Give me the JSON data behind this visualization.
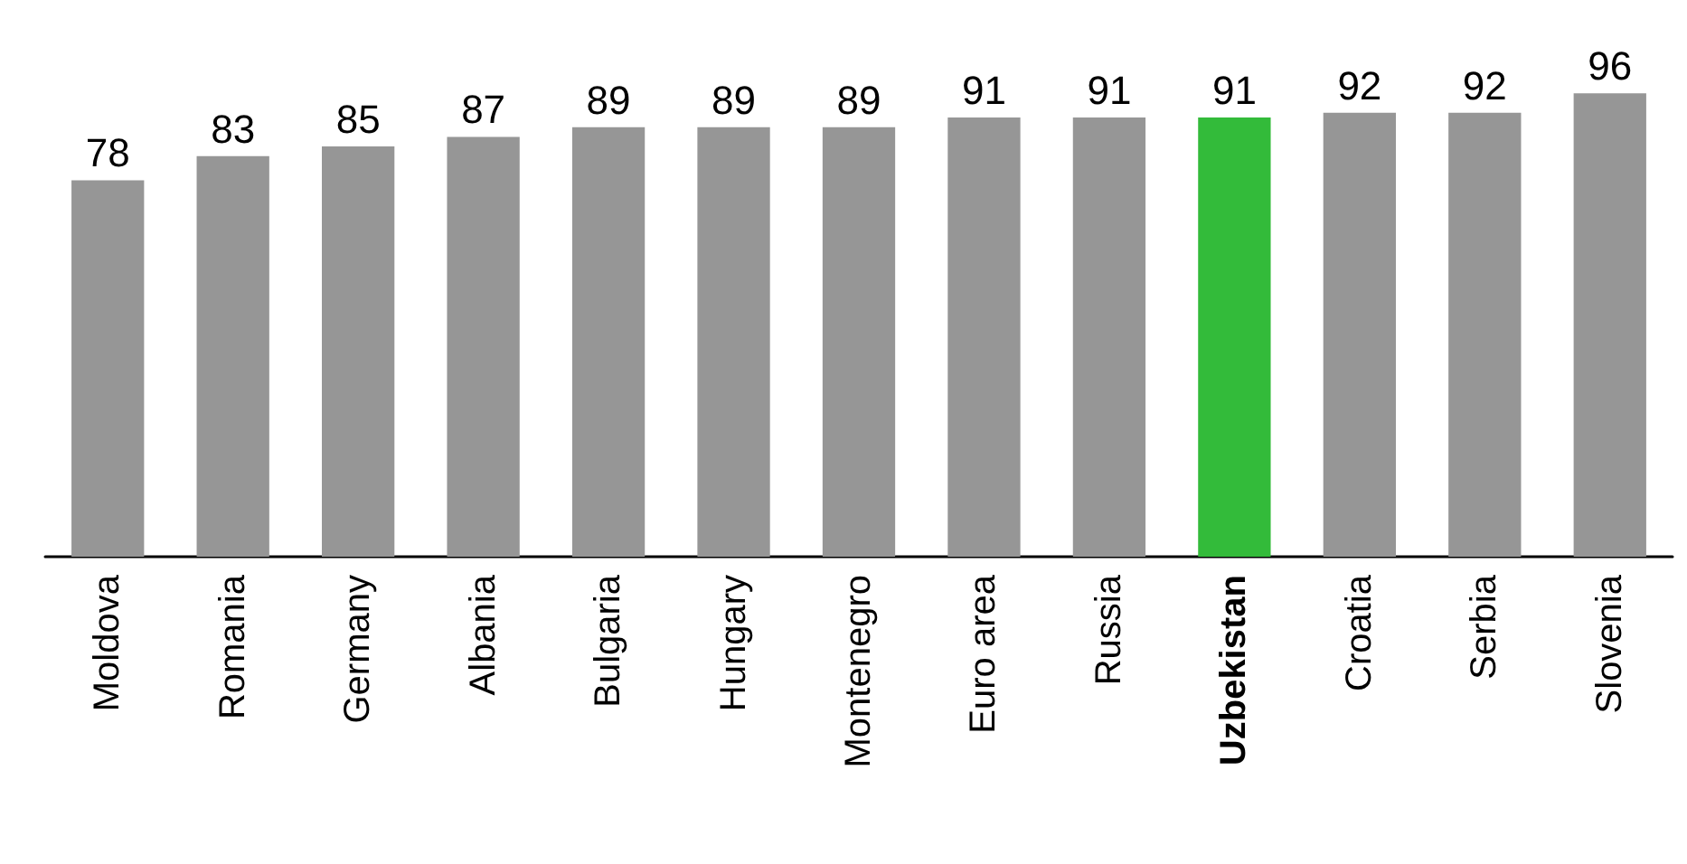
{
  "chart_data": {
    "type": "bar",
    "categories": [
      "Moldova",
      "Romania",
      "Germany",
      "Albania",
      "Bulgaria",
      "Hungary",
      "Montenegro",
      "Euro area",
      "Russia",
      "Uzbekistan",
      "Croatia",
      "Serbia",
      "Slovenia"
    ],
    "values": [
      78,
      83,
      85,
      87,
      89,
      89,
      89,
      91,
      91,
      91,
      92,
      92,
      96
    ],
    "colors": [
      "#969696",
      "#969696",
      "#969696",
      "#969696",
      "#969696",
      "#969696",
      "#969696",
      "#969696",
      "#969696",
      "#33bb3a",
      "#969696",
      "#969696",
      "#969696"
    ],
    "data_labels": true
  }
}
